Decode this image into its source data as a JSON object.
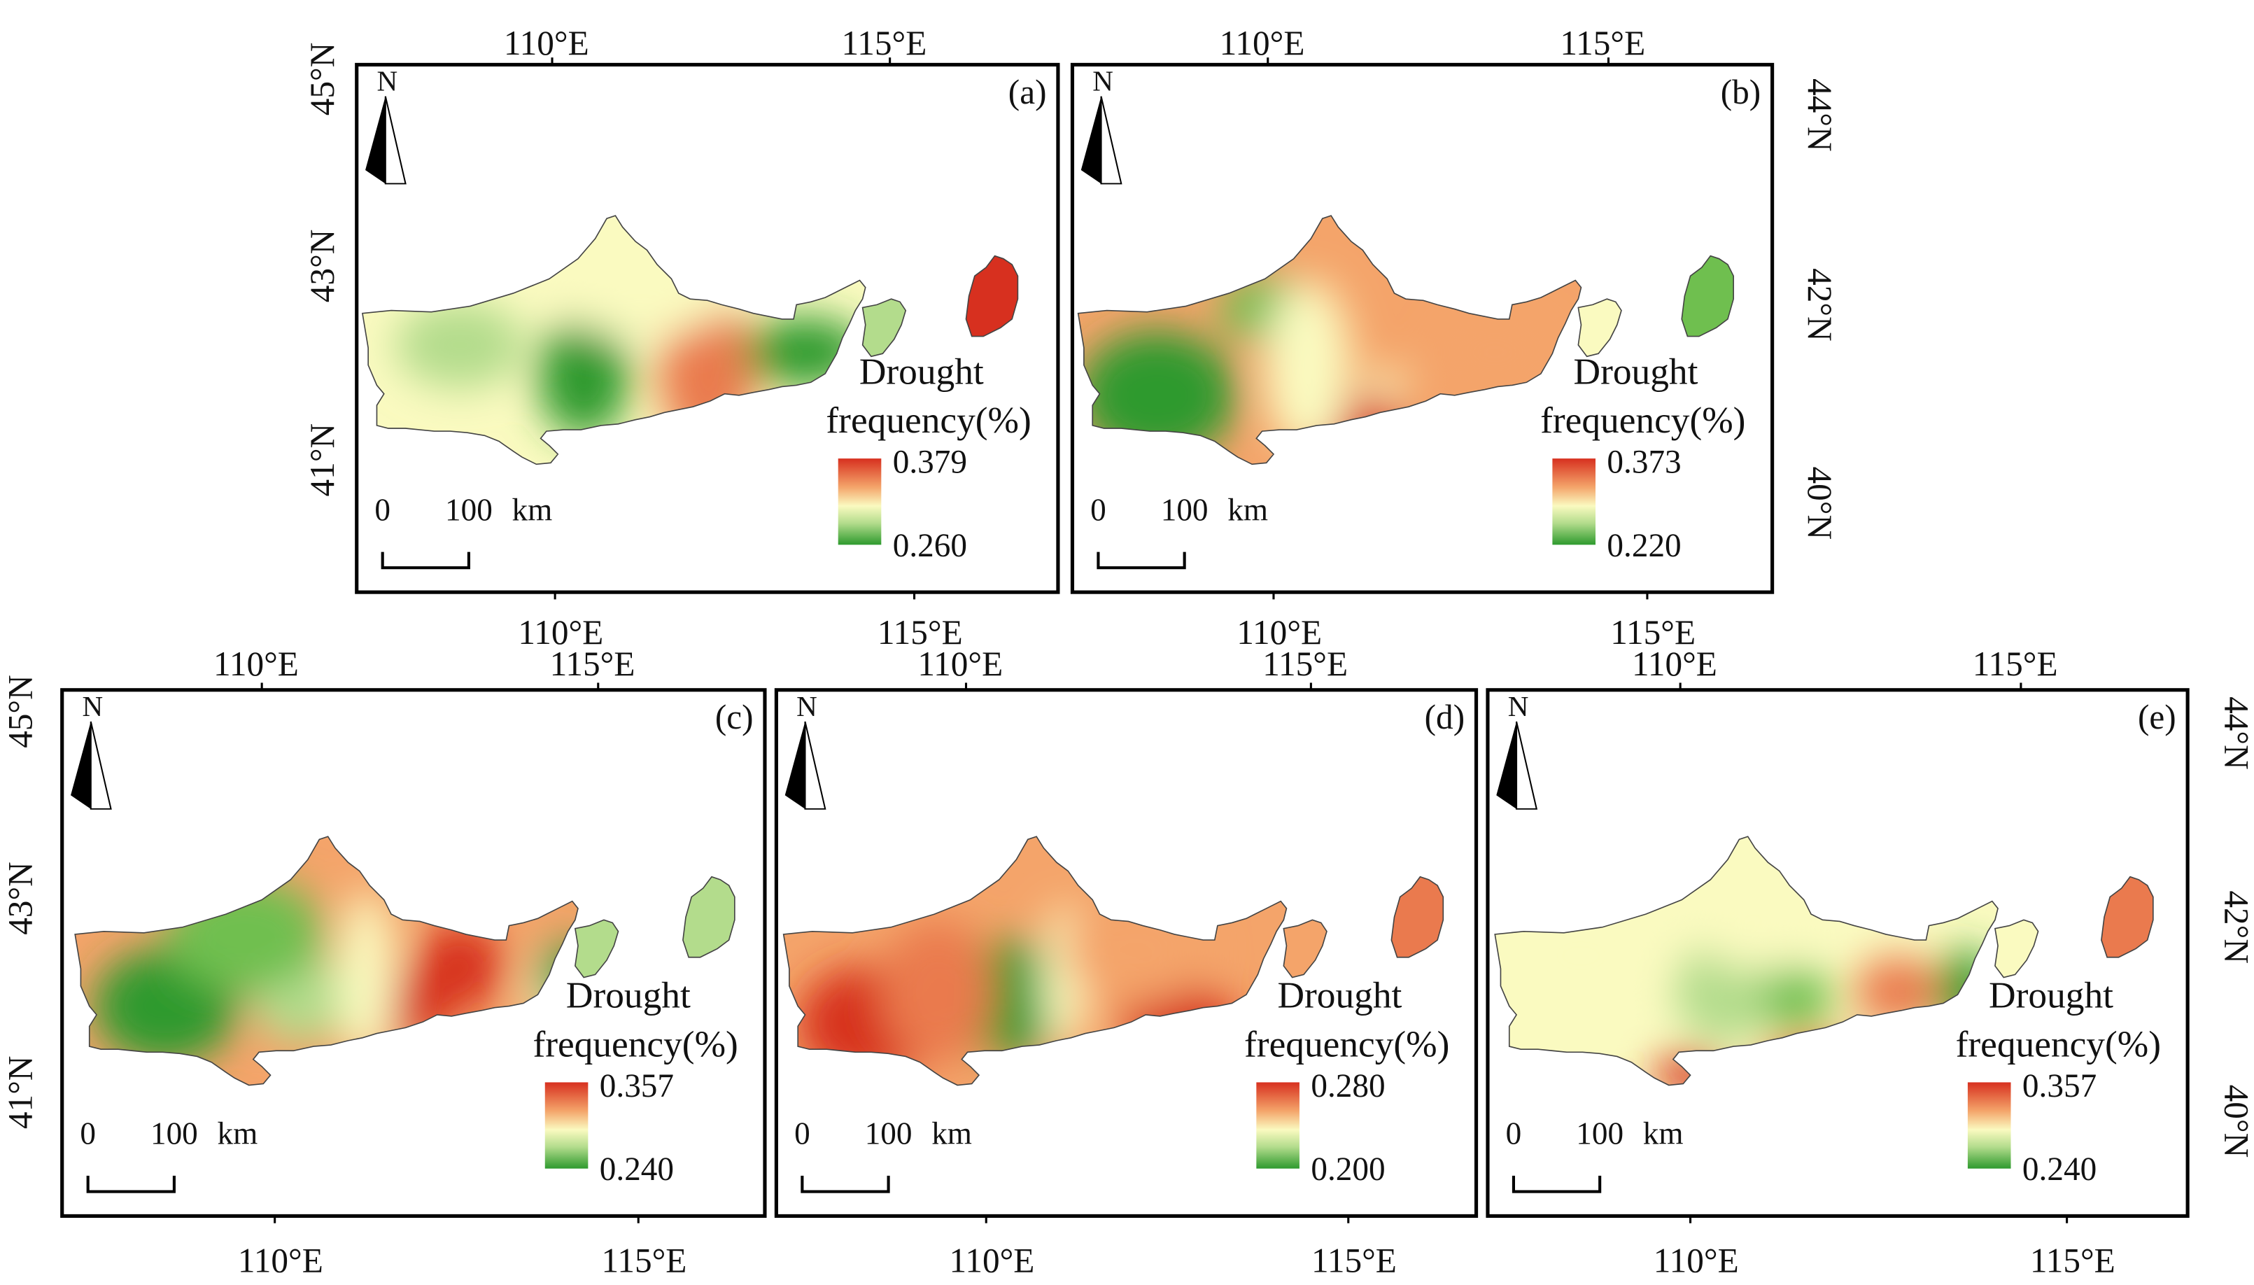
{
  "legend_title_line1": "Drought",
  "legend_title_line2": "frequency(%)",
  "scale_bar": {
    "zero": "0",
    "hundred": "100",
    "unit": "km"
  },
  "north_label": "N",
  "colors": {
    "low": "#2e9a2e",
    "mid": "#fafac0",
    "high": "#d7301f"
  },
  "panels": [
    {
      "id": "a",
      "panel_label": "(a)",
      "legend_max": "0.379",
      "legend_min": "0.260",
      "lon_labels_top": [
        "110°E",
        "115°E"
      ],
      "lon_labels_bottom": [
        "110°E",
        "115°E"
      ],
      "lat_labels": [
        "45°N",
        "43°N",
        "41°N"
      ]
    },
    {
      "id": "b",
      "panel_label": "(b)",
      "legend_max": "0.373",
      "legend_min": "0.220",
      "lon_labels_top": [
        "110°E",
        "115°E"
      ],
      "lon_labels_bottom": [
        "110°E",
        "115°E"
      ],
      "lat_labels": [
        "44°N",
        "42°N",
        "40°N"
      ]
    },
    {
      "id": "c",
      "panel_label": "(c)",
      "legend_max": "0.357",
      "legend_min": "0.240",
      "lon_labels_top": [
        "110°E",
        "115°E"
      ],
      "lon_labels_bottom": [
        "110°E",
        "115°E"
      ],
      "lat_labels": [
        "45°N",
        "43°N",
        "41°N"
      ]
    },
    {
      "id": "d",
      "panel_label": "(d)",
      "legend_max": "0.280",
      "legend_min": "0.200",
      "lon_labels_top": [
        "110°E",
        "115°E"
      ],
      "lon_labels_bottom": [
        "110°E",
        "115°E"
      ],
      "lat_labels": []
    },
    {
      "id": "e",
      "panel_label": "(e)",
      "legend_max": "0.357",
      "legend_min": "0.240",
      "lon_labels_top": [
        "110°E",
        "115°E"
      ],
      "lon_labels_bottom": [
        "110°E",
        "115°E"
      ],
      "lat_labels": [
        "44°N",
        "42°N",
        "40°N"
      ]
    }
  ]
}
